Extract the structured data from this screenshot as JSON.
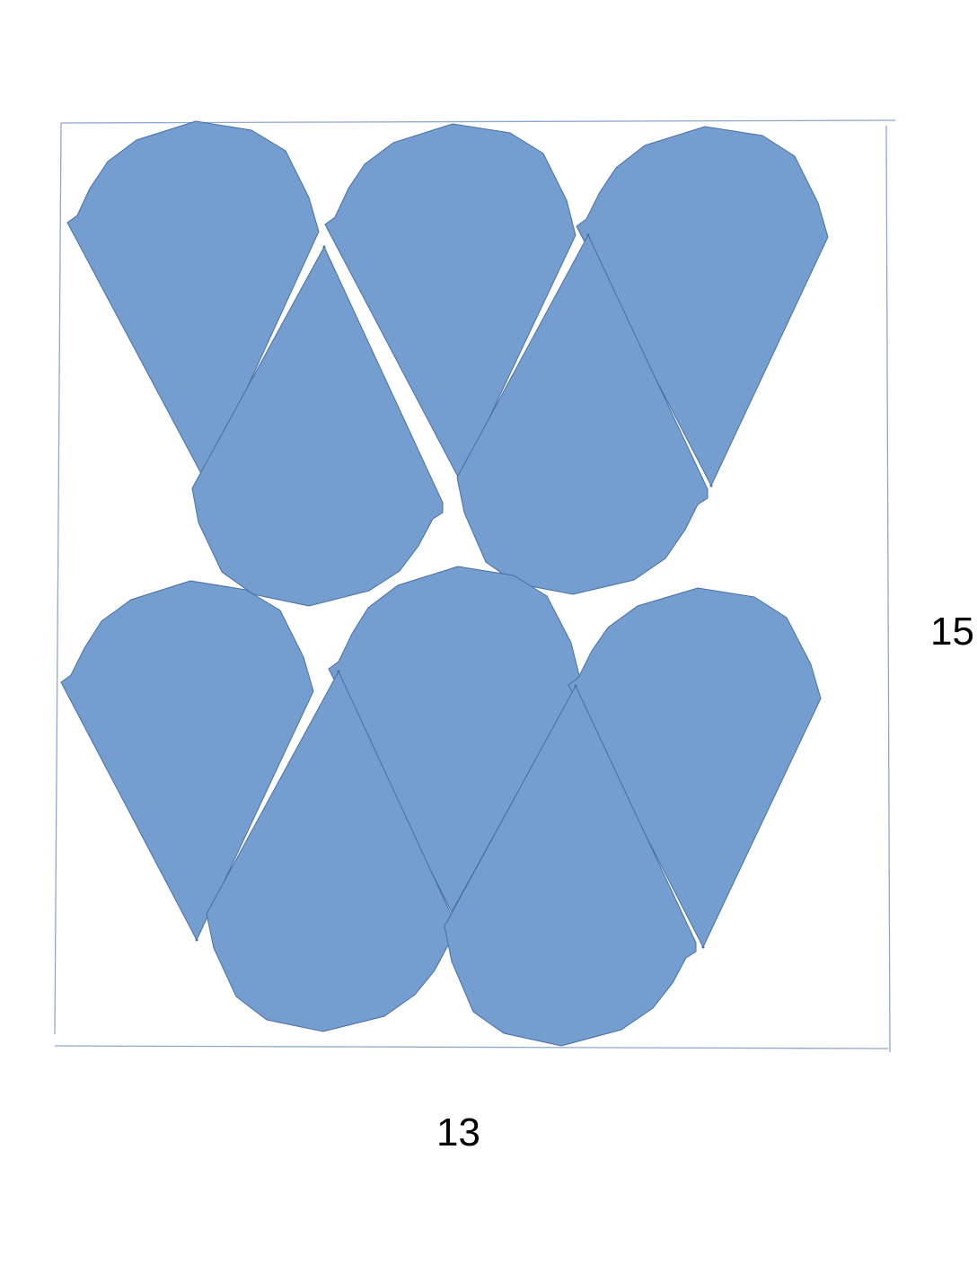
{
  "dimensions": {
    "width_label": "13",
    "height_label": "15"
  },
  "colors": {
    "piece_fill": "#739ecf",
    "piece_stroke": "#4a6fa5",
    "border_stroke": "#8ea8cf",
    "label": "#000000"
  },
  "pieces": [
    {
      "name": "piece-1-upper-left",
      "orientation": "point-down"
    },
    {
      "name": "piece-2-upper-middle",
      "orientation": "point-down"
    },
    {
      "name": "piece-3-upper-right",
      "orientation": "point-down"
    },
    {
      "name": "piece-4-upper-inner-left",
      "orientation": "point-up"
    },
    {
      "name": "piece-5-upper-inner-right",
      "orientation": "point-up"
    },
    {
      "name": "piece-6-lower-left",
      "orientation": "point-down"
    },
    {
      "name": "piece-7-lower-middle",
      "orientation": "point-down"
    },
    {
      "name": "piece-8-lower-right",
      "orientation": "point-down"
    },
    {
      "name": "piece-9-lower-inner-left",
      "orientation": "point-up"
    },
    {
      "name": "piece-10-lower-inner-right",
      "orientation": "point-up"
    }
  ]
}
